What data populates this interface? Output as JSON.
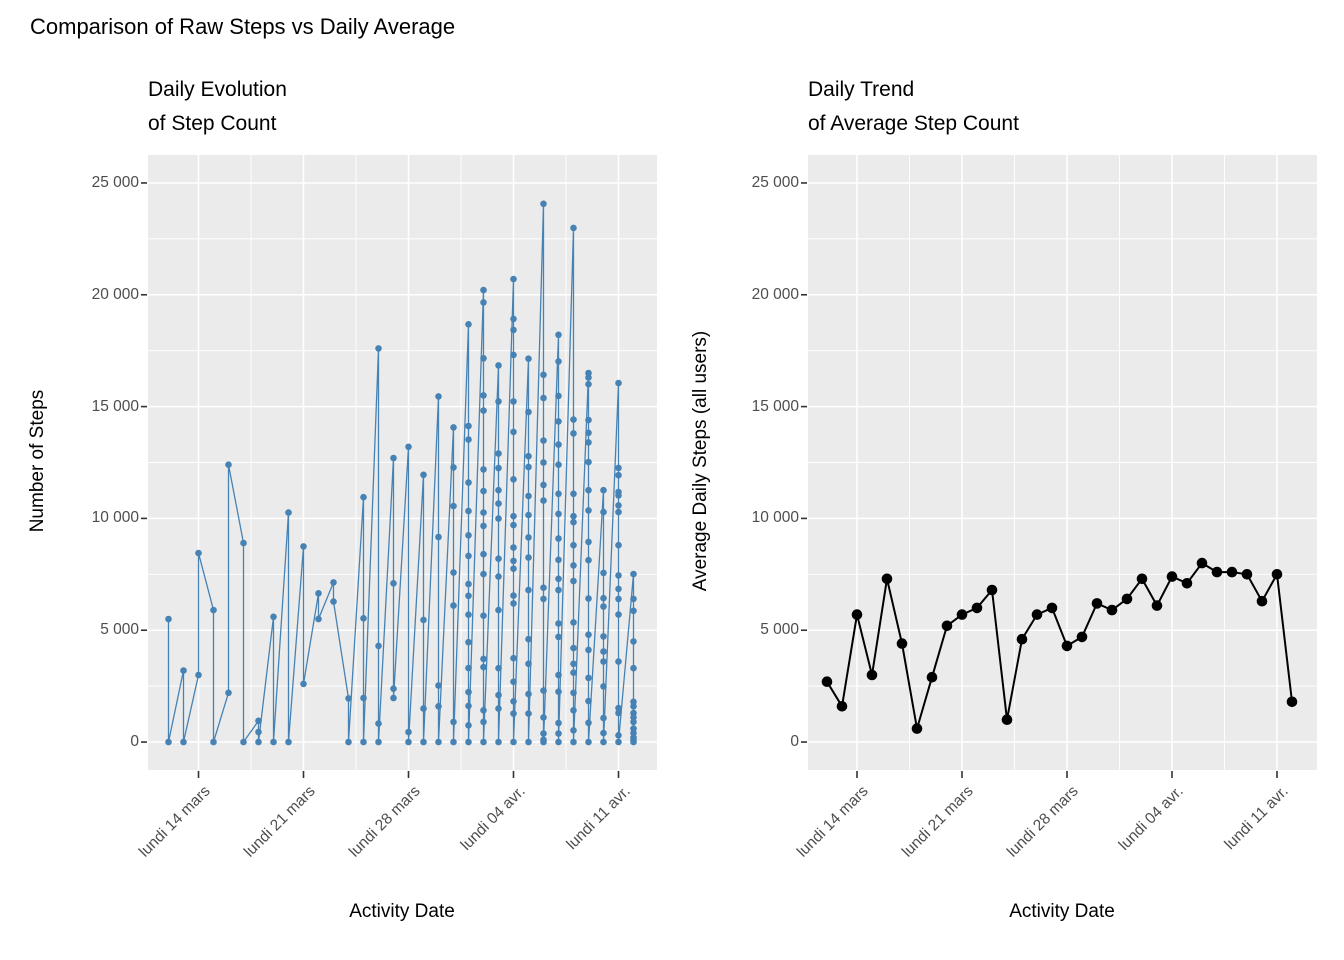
{
  "title": "Comparison of Raw Steps vs Daily Average",
  "colors": {
    "background": "#FFFFFF",
    "panel_background": "#EBEBEB",
    "grid_line": "#FFFFFF",
    "axis_tick_mark": "#333333",
    "tick_label_text": "#4D4D4D",
    "raw_steps_series": "#4682B4",
    "average_series": "#000000",
    "title_text": "#000000"
  },
  "x_axis": {
    "label": "Activity Date",
    "tick_labels": [
      "lundi 14 mars",
      "lundi 21 mars",
      "lundi 28 mars",
      "lundi 04 avr.",
      "lundi 11 avr."
    ],
    "tick_day_indices": [
      2,
      9,
      16,
      23,
      30
    ],
    "minor_day_indices": [
      -1.5,
      5.5,
      12.5,
      19.5,
      26.5
    ],
    "n_days": 32
  },
  "y_axis": {
    "tick_labels": [
      "0",
      "5 000",
      "10 000",
      "15 000",
      "20 000",
      "25 000"
    ],
    "tick_values": [
      0,
      5000,
      10000,
      15000,
      20000,
      25000
    ],
    "minor_values": [
      2500,
      7500,
      12500,
      17500,
      22500
    ],
    "limits": [
      0,
      25000
    ]
  },
  "chart_data": [
    {
      "type": "scatter",
      "title_line1": "Daily Evolution",
      "title_line2": "of Step Count",
      "xlabel": "Activity Date",
      "ylabel": "Number of Steps",
      "legend": "none",
      "grid": "on",
      "ylim": [
        0,
        25000
      ],
      "days": [
        [
          5500,
          0
        ],
        [
          3200,
          0
        ],
        [
          3000,
          8450
        ],
        [
          5900,
          0
        ],
        [
          2200,
          12400
        ],
        [
          8900,
          0
        ],
        [
          950,
          450,
          0
        ],
        [
          5600,
          0
        ],
        [
          10260,
          0
        ],
        [
          8750,
          2600
        ],
        [
          6650,
          5500
        ],
        [
          7140,
          6280
        ],
        [
          1950,
          0
        ],
        [
          10950,
          5535,
          1970,
          0
        ],
        [
          17600,
          4300,
          825,
          0
        ],
        [
          12700,
          7100,
          2385,
          1970
        ],
        [
          13200,
          450,
          0
        ],
        [
          11950,
          5460,
          1500,
          0
        ],
        [
          15455,
          9170,
          2530,
          1600,
          0
        ],
        [
          14070,
          12280,
          10550,
          7580,
          6100,
          900,
          0
        ],
        [
          18680,
          14130,
          13530,
          11600,
          10330,
          9245,
          8325,
          7065,
          6540,
          5695,
          4465,
          3305,
          2235,
          1615,
          750,
          0
        ],
        [
          20210,
          19660,
          17160,
          15500,
          14820,
          12190,
          11220,
          10260,
          9665,
          8400,
          7510,
          5650,
          3720,
          3350,
          1420,
          900,
          0
        ],
        [
          16840,
          15230,
          12900,
          12250,
          11260,
          10660,
          9990,
          8200,
          7400,
          5900,
          3300,
          2100,
          1500,
          0
        ],
        [
          20700,
          18920,
          18430,
          17310,
          15230,
          13870,
          11750,
          10100,
          9700,
          8700,
          8100,
          7750,
          6550,
          6200,
          3750,
          2700,
          1820,
          1270,
          0
        ],
        [
          17140,
          14760,
          12780,
          12300,
          11000,
          10150,
          9150,
          8250,
          6800,
          4600,
          3500,
          2150,
          1270,
          0
        ],
        [
          24070,
          16420,
          15385,
          13480,
          12500,
          11500,
          10800,
          6900,
          6400,
          2300,
          1100,
          380,
          100,
          0
        ],
        [
          18210,
          17020,
          15480,
          14340,
          13300,
          12400,
          11100,
          10200,
          9100,
          8150,
          7300,
          6800,
          5300,
          4700,
          3000,
          2250,
          850,
          380,
          0
        ],
        [
          22990,
          14420,
          13800,
          11100,
          10100,
          9830,
          8800,
          7900,
          7200,
          5350,
          4200,
          3500,
          3100,
          2200,
          1420,
          525,
          0
        ],
        [
          16500,
          16300,
          16000,
          14400,
          13830,
          13400,
          12520,
          11260,
          10360,
          8950,
          8130,
          6420,
          4800,
          4120,
          2870,
          1830,
          860,
          0
        ],
        [
          11260,
          10280,
          7565,
          6430,
          6060,
          4725,
          4050,
          3600,
          2490,
          1075,
          400,
          0
        ],
        [
          16050,
          12260,
          11930,
          11180,
          11030,
          10580,
          10280,
          8800,
          7450,
          6850,
          6400,
          5700,
          3600,
          1520,
          1300,
          300,
          0
        ],
        [
          7510,
          6400,
          5870,
          4500,
          3300,
          1800,
          1600,
          1300,
          1100,
          900,
          600,
          400,
          200,
          100,
          0
        ]
      ]
    },
    {
      "type": "line",
      "title_line1": "Daily Trend",
      "title_line2": "of Average Step Count",
      "xlabel": "Activity Date",
      "ylabel": "Average Daily Steps (all users)",
      "legend": "none",
      "grid": "on",
      "ylim": [
        0,
        25000
      ],
      "values": [
        2700,
        1600,
        5700,
        3000,
        7300,
        4400,
        600,
        2900,
        5200,
        5700,
        6000,
        6800,
        1000,
        4600,
        5700,
        6000,
        4300,
        4700,
        6200,
        5900,
        6400,
        7300,
        6100,
        7400,
        7100,
        8000,
        7600,
        7600,
        7500,
        6300,
        7500,
        1800
      ]
    }
  ]
}
